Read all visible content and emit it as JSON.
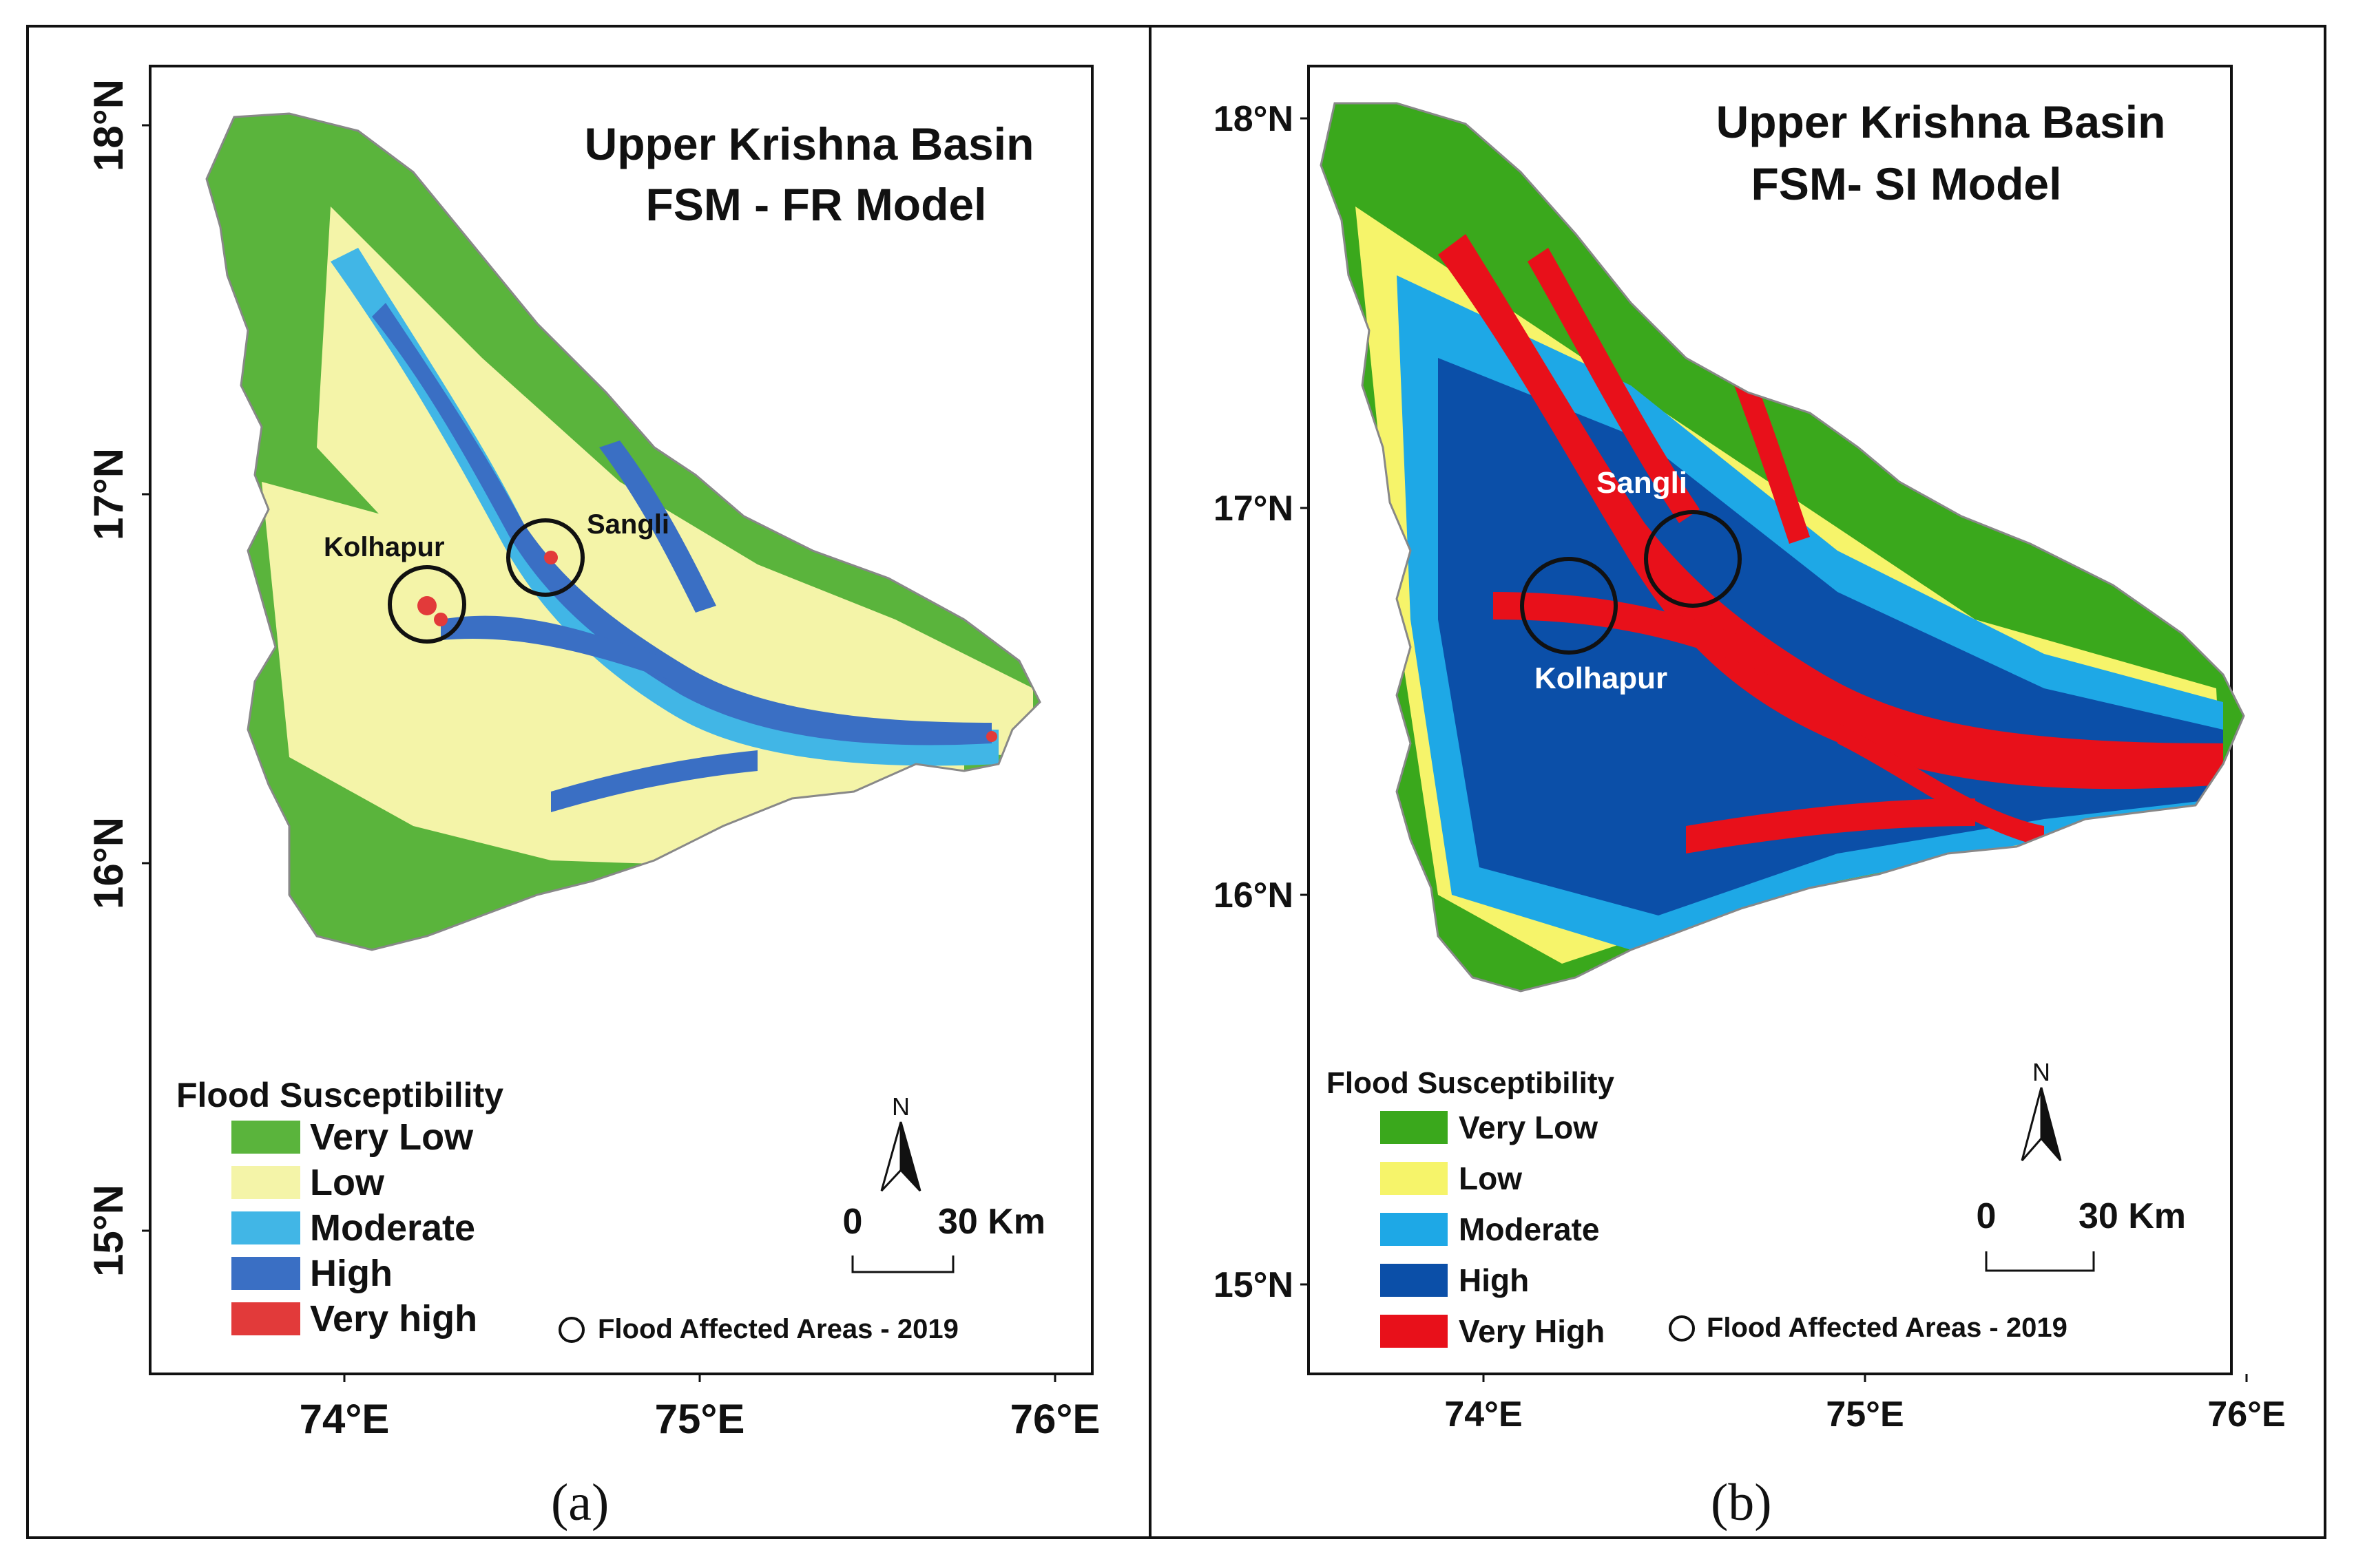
{
  "panels": [
    {
      "id": "a",
      "caption": "(a)",
      "title_line1": "Upper Krishna Basin",
      "title_line2": "FSM - FR Model",
      "lat_labels": [
        "18°N",
        "17°N",
        "16°N",
        "15°N"
      ],
      "lon_labels": [
        "74°E",
        "75°E",
        "76°E"
      ],
      "legend_title": "Flood Susceptibility",
      "legend_items": [
        {
          "label": "Very Low",
          "color": "#5ab43c"
        },
        {
          "label": "Low",
          "color": "#f4f4a8"
        },
        {
          "label": "Moderate",
          "color": "#41b6e6"
        },
        {
          "label": "High",
          "color": "#3a6fc4"
        },
        {
          "label": "Very high",
          "color": "#e23a3a"
        }
      ],
      "places": [
        "Kolhapur",
        "Sangli"
      ],
      "north_label": "N",
      "scale_zero": "0",
      "scale_end": "30 Km",
      "affected_label": "Flood Affected Areas - 2019"
    },
    {
      "id": "b",
      "caption": "(b)",
      "title_line1": "Upper Krishna Basin",
      "title_line2": "FSM- SI Model",
      "lat_labels": [
        "18°N",
        "17°N",
        "16°N",
        "15°N"
      ],
      "lon_labels": [
        "74°E",
        "75°E",
        "76°E"
      ],
      "legend_title": "Flood Susceptibility",
      "legend_items": [
        {
          "label": "Very Low",
          "color": "#3aa81c"
        },
        {
          "label": "Low",
          "color": "#f6f46a"
        },
        {
          "label": "Moderate",
          "color": "#1ea8e6"
        },
        {
          "label": "High",
          "color": "#0b4fa8"
        },
        {
          "label": "Very High",
          "color": "#e8101a"
        }
      ],
      "places": [
        "Sangli",
        "Kolhapur"
      ],
      "north_label": "N",
      "scale_zero": "0",
      "scale_end": "30 Km",
      "affected_label": "Flood Affected Areas - 2019"
    }
  ]
}
